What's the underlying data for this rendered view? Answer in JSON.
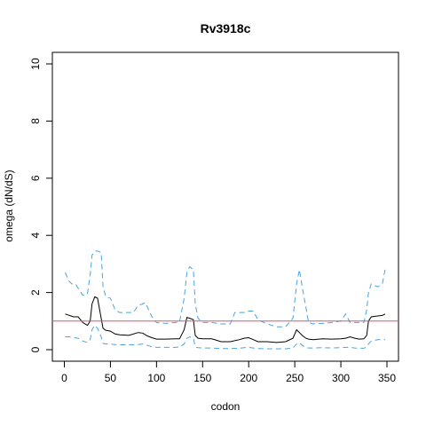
{
  "chart_data": {
    "type": "line",
    "title": "Rv3918c",
    "xlabel": "codon",
    "ylabel": "omega (dN/dS)",
    "xlim": [
      0,
      350
    ],
    "ylim": [
      0,
      10
    ],
    "x_ticks": [
      0,
      50,
      100,
      150,
      200,
      250,
      300,
      350
    ],
    "y_ticks": [
      0,
      2,
      4,
      6,
      8,
      10
    ],
    "grid": false,
    "reference_line": {
      "y": 1,
      "color": "#df536b"
    },
    "series": [
      {
        "style": "solid",
        "color": "#000000",
        "x": [
          1,
          10,
          15,
          20,
          25,
          28,
          30,
          33,
          36,
          40,
          42,
          45,
          50,
          55,
          60,
          70,
          80,
          85,
          90,
          95,
          100,
          110,
          120,
          125,
          130,
          133,
          136,
          140,
          142,
          145,
          150,
          160,
          170,
          180,
          190,
          195,
          200,
          205,
          210,
          220,
          230,
          240,
          248,
          252,
          255,
          258,
          262,
          265,
          270,
          280,
          290,
          300,
          305,
          310,
          315,
          320,
          325,
          328,
          330,
          333,
          340,
          345,
          348
        ],
        "values": [
          1.25,
          1.15,
          1.15,
          0.95,
          0.85,
          1.0,
          1.6,
          1.85,
          1.8,
          1.1,
          0.75,
          0.68,
          0.65,
          0.55,
          0.52,
          0.5,
          0.6,
          0.58,
          0.48,
          0.42,
          0.37,
          0.37,
          0.38,
          0.38,
          0.7,
          1.13,
          1.1,
          1.05,
          0.5,
          0.4,
          0.38,
          0.38,
          0.28,
          0.28,
          0.35,
          0.4,
          0.42,
          0.35,
          0.28,
          0.28,
          0.25,
          0.28,
          0.4,
          0.7,
          0.6,
          0.5,
          0.4,
          0.37,
          0.35,
          0.38,
          0.37,
          0.38,
          0.4,
          0.45,
          0.4,
          0.37,
          0.38,
          0.5,
          1.0,
          1.15,
          1.18,
          1.2,
          1.25
        ]
      },
      {
        "style": "dashed",
        "color": "#4aa3df",
        "x": [
          1,
          5,
          8,
          12,
          15,
          20,
          25,
          28,
          30,
          33,
          36,
          40,
          42,
          45,
          50,
          55,
          60,
          70,
          75,
          80,
          85,
          88,
          90,
          95,
          100,
          110,
          120,
          125,
          130,
          133,
          136,
          140,
          142,
          145,
          150,
          160,
          170,
          180,
          185,
          190,
          195,
          200,
          205,
          210,
          220,
          230,
          240,
          248,
          252,
          255,
          258,
          262,
          265,
          270,
          280,
          290,
          300,
          305,
          310,
          315,
          320,
          325,
          328,
          330,
          333,
          340,
          345,
          348
        ],
        "values": [
          2.7,
          2.4,
          2.3,
          2.3,
          2.15,
          1.9,
          1.95,
          2.6,
          3.3,
          3.45,
          3.45,
          3.4,
          2.2,
          1.85,
          1.8,
          1.4,
          1.3,
          1.3,
          1.3,
          1.55,
          1.6,
          1.65,
          1.5,
          1.15,
          0.95,
          0.92,
          0.95,
          0.97,
          1.8,
          2.7,
          2.9,
          2.8,
          1.6,
          1.1,
          0.95,
          0.95,
          0.9,
          0.9,
          1.3,
          1.3,
          1.3,
          1.35,
          1.35,
          1.05,
          0.9,
          0.8,
          0.8,
          1.1,
          2.3,
          2.8,
          2.2,
          1.5,
          0.95,
          0.9,
          0.92,
          0.95,
          1.0,
          1.25,
          0.95,
          0.95,
          0.95,
          0.95,
          1.4,
          2.0,
          2.3,
          2.2,
          2.3,
          2.8
        ]
      },
      {
        "style": "dashed",
        "color": "#4aa3df",
        "x": [
          1,
          5,
          10,
          15,
          20,
          25,
          28,
          30,
          33,
          36,
          40,
          42,
          45,
          50,
          55,
          60,
          70,
          80,
          85,
          90,
          95,
          100,
          110,
          120,
          125,
          130,
          133,
          136,
          140,
          142,
          145,
          150,
          160,
          170,
          180,
          190,
          195,
          200,
          205,
          210,
          220,
          230,
          240,
          248,
          252,
          255,
          258,
          262,
          265,
          270,
          280,
          290,
          300,
          305,
          310,
          315,
          320,
          325,
          328,
          330,
          333,
          340,
          345,
          348
        ],
        "values": [
          0.45,
          0.45,
          0.42,
          0.4,
          0.3,
          0.25,
          0.35,
          0.7,
          0.85,
          0.75,
          0.45,
          0.22,
          0.2,
          0.2,
          0.18,
          0.17,
          0.17,
          0.18,
          0.2,
          0.15,
          0.1,
          0.08,
          0.08,
          0.08,
          0.09,
          0.2,
          0.4,
          0.45,
          0.4,
          0.1,
          0.07,
          0.06,
          0.06,
          0.04,
          0.04,
          0.05,
          0.07,
          0.08,
          0.06,
          0.04,
          0.03,
          0.03,
          0.03,
          0.06,
          0.2,
          0.25,
          0.15,
          0.08,
          0.06,
          0.06,
          0.07,
          0.06,
          0.07,
          0.08,
          0.08,
          0.06,
          0.05,
          0.05,
          0.1,
          0.2,
          0.3,
          0.35,
          0.35,
          0.35
        ]
      }
    ]
  }
}
